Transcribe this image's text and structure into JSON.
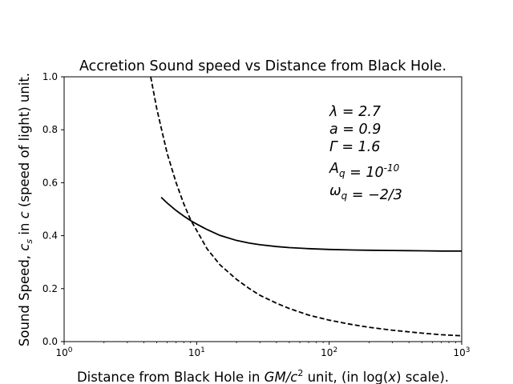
{
  "chart_data": {
    "type": "line",
    "title": "Accretion Sound speed vs Distance from Black Hole.",
    "xlabel": "Distance from Black Hole in GM/c^2 unit, (in log(x) scale).",
    "ylabel": "Sound Speed, c_s in c (speed of light) unit.",
    "xscale": "log",
    "xlim": [
      1,
      1000
    ],
    "ylim": [
      0.0,
      1.0
    ],
    "x_ticks": [
      "10^0",
      "10^1",
      "10^2",
      "10^3"
    ],
    "y_ticks": [
      "0.0",
      "0.2",
      "0.4",
      "0.6",
      "0.8",
      "1.0"
    ],
    "grid": false,
    "annotations": [
      "λ = 2.7",
      "a = 0.9",
      "Γ = 1.6",
      "A_q = 10^-10",
      "ω_q = −2/3"
    ],
    "series": [
      {
        "style": "solid",
        "color": "#000000",
        "x": [
          5.4,
          6,
          7,
          8,
          9,
          10,
          12,
          15,
          20,
          25,
          30,
          40,
          50,
          70,
          100,
          150,
          200,
          300,
          500,
          700,
          1000
        ],
        "y": [
          0.545,
          0.523,
          0.495,
          0.474,
          0.457,
          0.444,
          0.423,
          0.401,
          0.382,
          0.372,
          0.366,
          0.359,
          0.355,
          0.351,
          0.348,
          0.346,
          0.345,
          0.344,
          0.343,
          0.342,
          0.342
        ]
      },
      {
        "style": "dashed",
        "color": "#000000",
        "x": [
          4.5,
          5,
          5.5,
          6,
          7,
          8,
          9,
          10,
          12,
          15,
          20,
          25,
          30,
          40,
          50,
          70,
          100,
          150,
          200,
          300,
          500,
          700,
          1000
        ],
        "y": [
          1.0,
          0.88,
          0.79,
          0.71,
          0.6,
          0.52,
          0.46,
          0.42,
          0.35,
          0.29,
          0.235,
          0.2,
          0.175,
          0.145,
          0.125,
          0.1,
          0.081,
          0.064,
          0.054,
          0.043,
          0.032,
          0.026,
          0.022
        ]
      }
    ]
  }
}
